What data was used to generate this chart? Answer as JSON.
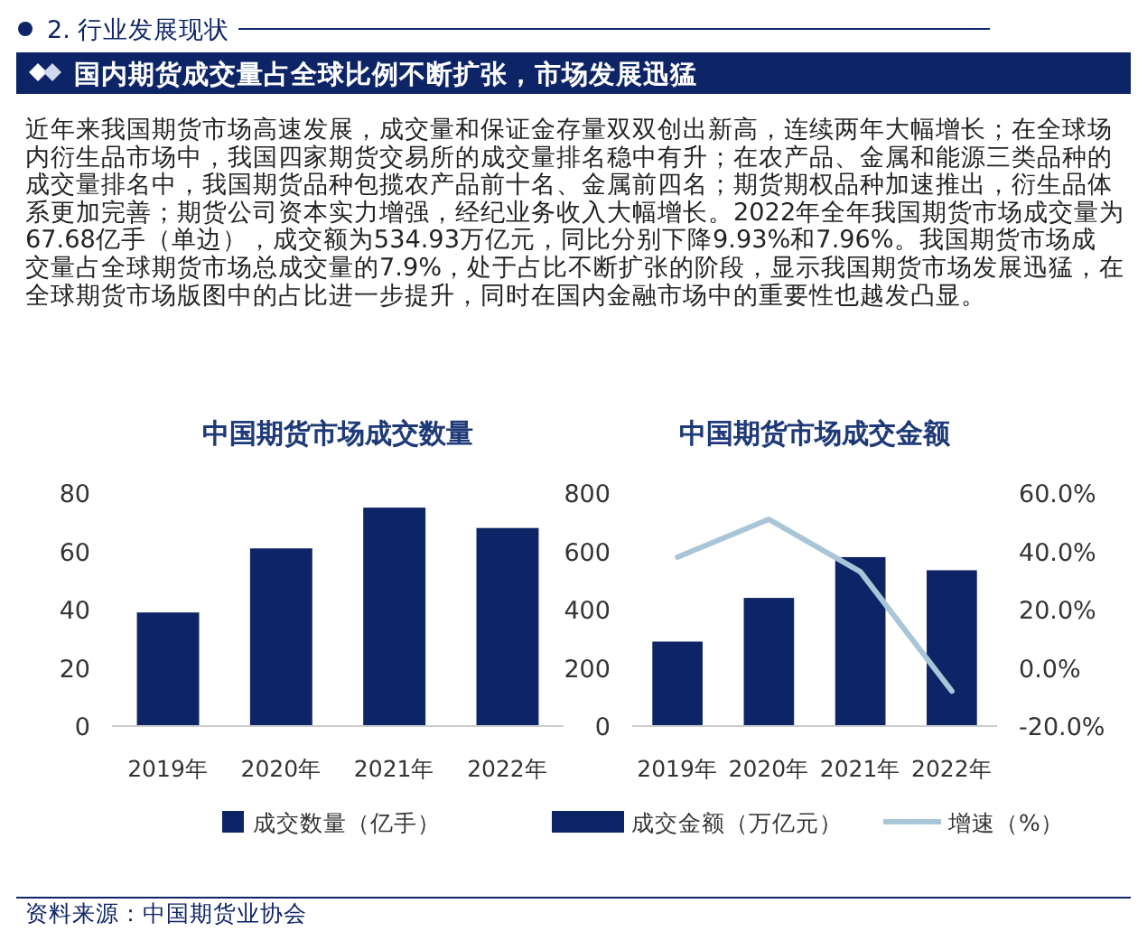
{
  "chart_data": [
    {
      "type": "other",
      "title": "国内期货成交量占全球比例不断扩张，市场发展迅猛",
      "subtitle": "2. 行业发展现状",
      "annotations": [
        "近年来我国期货市场高速发展，成交量和保证金存量双双创出新高，连续两年大幅增长；在全球场内衍生品市场中，我国四家期货交易所的成交量排名稳中有升；在农产品、金属和能源三类品种的成交量排名中，我国期货品种包揽农产品前十名、金属前四名；期货期权品种加速推出，衍生品体系更加完善；期货公司资本实力增强，经纪业务收入大幅增长。2022年全年我国期货市场成交量为67.68亿手（单边），成交额为534.93万亿元，同比分别下降9.93%和7.96%。我国期货市场成交量占全球期货市场总成交量的7.9%，处于占比不断扩张的阶段，显示我国期货市场发展迅猛，在全球期货市场版图中的占比进一步提升，同时在国内金融市场中的重要性也越发凸显。",
        "资料来源：中国期货业协会"
      ]
    },
    {
      "type": "bar",
      "title": "中国期货市场成交数量",
      "categories": [
        "2019年",
        "2020年",
        "2021年",
        "2022年"
      ],
      "ylim": [
        0,
        80
      ],
      "yticks": [
        0,
        20,
        40,
        60,
        80
      ],
      "legend": "bottom",
      "series": [
        {
          "name": "成交数量（亿手）",
          "color": "#0d2567",
          "values": [
            39,
            61,
            75,
            68
          ]
        }
      ]
    },
    {
      "type": "bar",
      "title": "中国期货市场成交金额",
      "categories": [
        "2019年",
        "2020年",
        "2021年",
        "2022年"
      ],
      "ylim": [
        0,
        800
      ],
      "yticks": [
        0,
        200,
        400,
        600,
        800
      ],
      "y2lim": [
        -20,
        60
      ],
      "y2ticks": [
        {
          "value": -20,
          "label": "-20.0%"
        },
        {
          "value": 0,
          "label": "0.0%"
        },
        {
          "value": 20,
          "label": "20.0%"
        },
        {
          "value": 40,
          "label": "40.0%"
        },
        {
          "value": 60,
          "label": "60.0%"
        }
      ],
      "legend": "bottom",
      "series": [
        {
          "name": "成交金额（万亿元）",
          "type": "bar",
          "color": "#0d2567",
          "values": [
            290,
            440,
            580,
            535
          ]
        },
        {
          "name": "增速（%）",
          "type": "line",
          "axis": "y2",
          "color": "#a9c6d8",
          "values": [
            38,
            51,
            33,
            -8
          ]
        }
      ]
    }
  ]
}
